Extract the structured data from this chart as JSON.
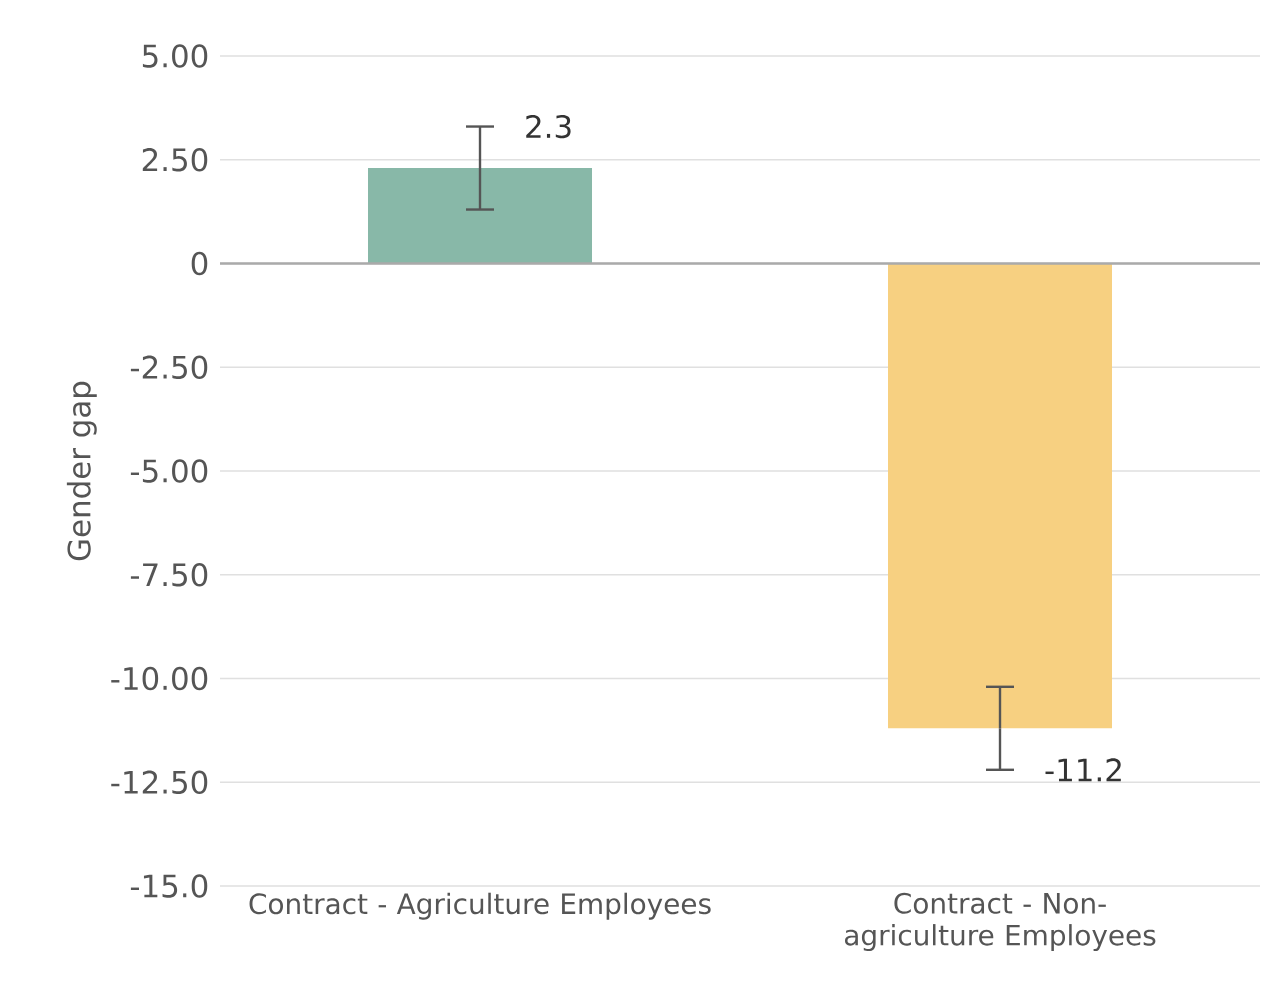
{
  "chart_data": {
    "type": "bar",
    "ylabel": "Gender gap",
    "categories": [
      "Contract - Agriculture Employees",
      "Contract - Non-agriculture Employees"
    ],
    "values": [
      2.3,
      -11.2
    ],
    "colors": [
      "#88b8a8",
      "#f7d081"
    ],
    "errors": [
      1.0,
      1.0
    ],
    "value_labels": [
      "2.3",
      "-11.2"
    ],
    "ylim": [
      -15,
      5
    ],
    "yticks": [
      {
        "value": 5,
        "label": "5.00"
      },
      {
        "value": 2.5,
        "label": "2.50"
      },
      0,
      {
        "value": -2.5,
        "label": "-2.50"
      },
      {
        "value": -5,
        "label": "-5.00"
      },
      {
        "value": -7.5,
        "label": "-7.50"
      },
      {
        "value": -10,
        "label": "-10.00"
      },
      {
        "value": -12.5,
        "label": "-12.50"
      },
      {
        "value": -15,
        "label": "-15.0"
      }
    ],
    "grid": "y"
  }
}
